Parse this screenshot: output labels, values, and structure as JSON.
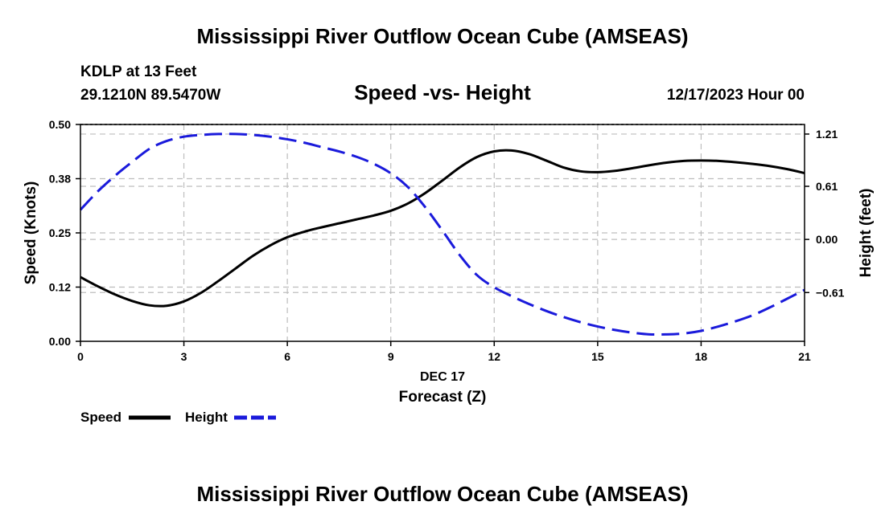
{
  "header": {
    "title": "Mississippi River Outflow Ocean Cube (AMSEAS)",
    "station": "KDLP at 13 Feet",
    "coords": "29.1210N  89.5470W",
    "subtitle": "Speed -vs- Height",
    "datetime": "12/17/2023 Hour 00"
  },
  "footer": {
    "title": "Mississippi River Outflow Ocean Cube (AMSEAS)"
  },
  "legend": {
    "speed_label": "Speed",
    "height_label": "Height"
  },
  "colors": {
    "speed": "#000000",
    "height": "#1a1adb",
    "grid": "#bdbdbd"
  },
  "chart_data": {
    "type": "line",
    "title": "Speed -vs- Height",
    "xlabel": "Forecast (Z)",
    "xlabel_date": "DEC 17",
    "xlim": [
      0,
      21
    ],
    "x_ticks": [
      0,
      3,
      6,
      9,
      12,
      15,
      18,
      21
    ],
    "x_tick_labels": [
      "0",
      "3",
      "6",
      "9",
      "12",
      "15",
      "18",
      "21"
    ],
    "ylabel_left": "Speed (Knots)",
    "ylim_left": [
      0,
      0.5
    ],
    "y_ticks_left": [
      0,
      0.125,
      0.25,
      0.375,
      0.5
    ],
    "y_tick_labels_left": [
      "0.00",
      "0.12",
      "0.25",
      "0.38",
      "0.50"
    ],
    "ylabel_right": "Height (feet)",
    "ylim_right": [
      -1.17,
      1.32
    ],
    "y_ticks_right": [
      -0.61,
      0.0,
      0.61,
      1.21
    ],
    "y_tick_labels_right": [
      "−0.61",
      "0.00",
      "0.61",
      "1.21"
    ],
    "grid": true,
    "series": [
      {
        "name": "Speed",
        "axis": "left",
        "style": "solid",
        "x": [
          0,
          0.5,
          1,
          1.5,
          2,
          2.5,
          3,
          3.5,
          4,
          4.5,
          5,
          5.5,
          6,
          6.5,
          7,
          7.5,
          8,
          8.5,
          9,
          9.5,
          10,
          10.5,
          11,
          11.5,
          12,
          12.5,
          13,
          13.5,
          14,
          14.5,
          15,
          15.5,
          16,
          16.5,
          17,
          17.5,
          18,
          18.5,
          19,
          19.5,
          20,
          20.5,
          21
        ],
        "values": [
          0.148,
          0.127,
          0.108,
          0.093,
          0.083,
          0.082,
          0.092,
          0.112,
          0.139,
          0.168,
          0.197,
          0.221,
          0.24,
          0.253,
          0.263,
          0.272,
          0.281,
          0.29,
          0.301,
          0.318,
          0.342,
          0.371,
          0.401,
          0.425,
          0.438,
          0.44,
          0.432,
          0.417,
          0.401,
          0.392,
          0.39,
          0.393,
          0.399,
          0.406,
          0.412,
          0.416,
          0.417,
          0.416,
          0.413,
          0.409,
          0.404,
          0.397,
          0.388
        ]
      },
      {
        "name": "Height",
        "axis": "right",
        "style": "dashed",
        "x": [
          0,
          0.5,
          1,
          1.5,
          2,
          2.5,
          3,
          3.5,
          4,
          4.5,
          5,
          5.5,
          6,
          6.5,
          7,
          7.5,
          8,
          8.5,
          9,
          9.5,
          10,
          10.5,
          11,
          11.5,
          12,
          12.5,
          13,
          13.5,
          14,
          14.5,
          15,
          15.5,
          16,
          16.5,
          17,
          17.5,
          18,
          18.5,
          19,
          19.5,
          20,
          20.5,
          21
        ],
        "values": [
          0.34,
          0.55,
          0.73,
          0.89,
          1.04,
          1.13,
          1.18,
          1.2,
          1.21,
          1.21,
          1.2,
          1.18,
          1.15,
          1.11,
          1.06,
          1.01,
          0.95,
          0.87,
          0.76,
          0.6,
          0.37,
          0.1,
          -0.18,
          -0.41,
          -0.55,
          -0.65,
          -0.74,
          -0.82,
          -0.89,
          -0.95,
          -1.0,
          -1.04,
          -1.07,
          -1.09,
          -1.09,
          -1.08,
          -1.05,
          -1.0,
          -0.94,
          -0.87,
          -0.78,
          -0.68,
          -0.58
        ]
      }
    ]
  }
}
